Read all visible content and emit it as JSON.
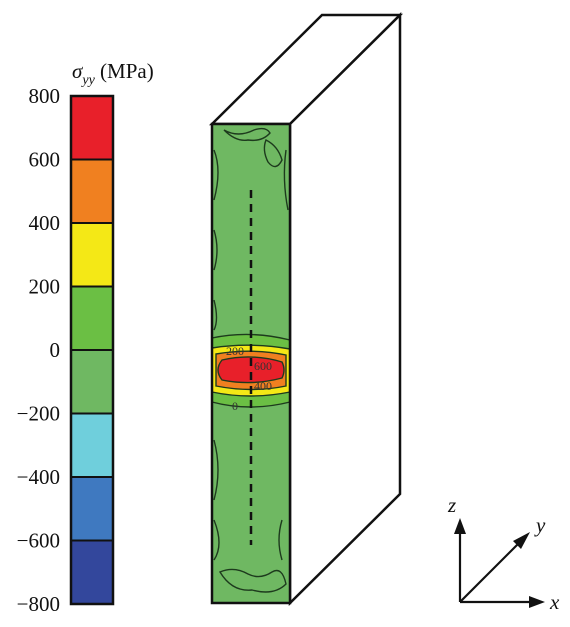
{
  "colorbar": {
    "title_symbol": "σ",
    "title_subscript": "yy",
    "title_unit": " (MPa)",
    "ticks": [
      "800",
      "600",
      "400",
      "200",
      "0",
      "−200",
      "−400",
      "−600",
      "−800"
    ],
    "bands": [
      {
        "from": 600,
        "to": 800,
        "color": "#e8202a"
      },
      {
        "from": 400,
        "to": 600,
        "color": "#f08020"
      },
      {
        "from": 200,
        "to": 400,
        "color": "#f4e816"
      },
      {
        "from": 0,
        "to": 200,
        "color": "#6bbf44"
      },
      {
        "from": -200,
        "to": 0,
        "color": "#6fb862"
      },
      {
        "from": -400,
        "to": -200,
        "color": "#6fcfdc"
      },
      {
        "from": -600,
        "to": -400,
        "color": "#3f79c0"
      },
      {
        "from": -800,
        "to": -600,
        "color": "#33479c"
      }
    ]
  },
  "specimen": {
    "face_color": "#6fb862",
    "contour_labels": [
      "200",
      "600",
      "400",
      "0"
    ]
  },
  "axes": {
    "z_label": "z",
    "y_label": "y",
    "x_label": "x"
  }
}
